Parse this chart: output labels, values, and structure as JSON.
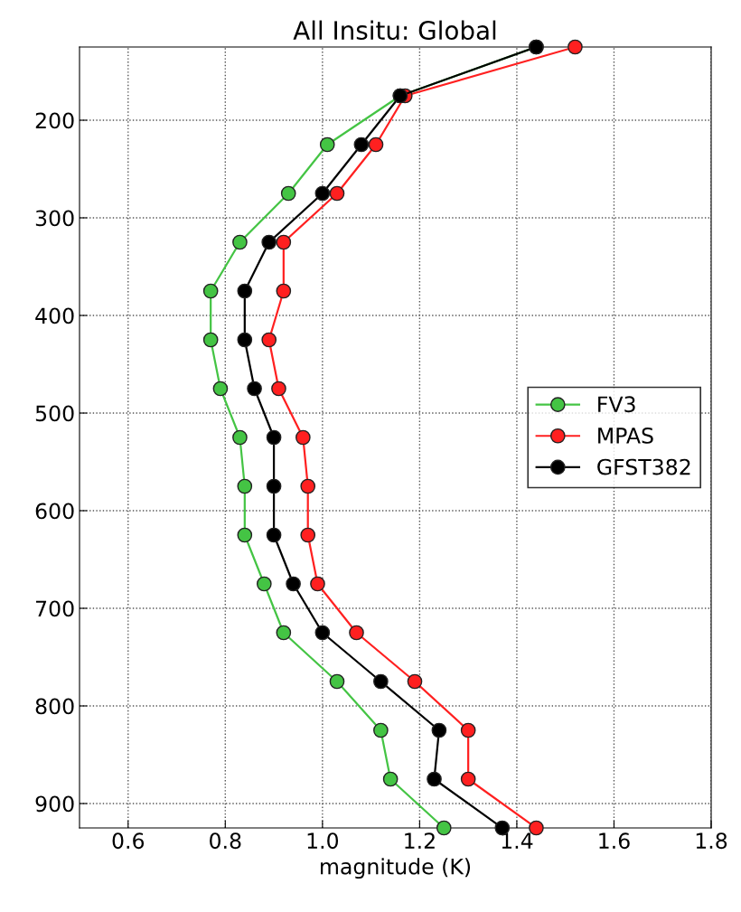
{
  "chart_data": {
    "type": "line",
    "title": "All Insitu: Global",
    "xlabel": "magnitude (K)",
    "orientation": "horizontal",
    "x": [
      125,
      175,
      225,
      275,
      325,
      375,
      425,
      475,
      525,
      575,
      625,
      675,
      725,
      775,
      825,
      875,
      925
    ],
    "series": [
      {
        "name": "FV3",
        "color": "#44c444",
        "values": [
          1.44,
          1.16,
          1.01,
          0.93,
          0.83,
          0.77,
          0.77,
          0.79,
          0.83,
          0.84,
          0.84,
          0.88,
          0.92,
          1.03,
          1.12,
          1.14,
          1.25
        ]
      },
      {
        "name": "MPAS",
        "color": "#ff2020",
        "values": [
          1.52,
          1.17,
          1.11,
          1.03,
          0.92,
          0.92,
          0.89,
          0.91,
          0.96,
          0.97,
          0.97,
          0.99,
          1.07,
          1.19,
          1.3,
          1.3,
          1.44
        ]
      },
      {
        "name": "GFST382",
        "color": "#000000",
        "values": [
          1.44,
          1.16,
          1.08,
          1.0,
          0.89,
          0.84,
          0.84,
          0.86,
          0.9,
          0.9,
          0.9,
          0.94,
          1.0,
          1.12,
          1.24,
          1.23,
          1.37
        ]
      }
    ],
    "xlim": [
      0.5,
      1.8
    ],
    "xticks": [
      0.6,
      0.8,
      {
        "value": 1.0,
        "label": "1.0"
      },
      1.2,
      1.4,
      1.6,
      1.8
    ],
    "ylim": [
      925,
      125
    ],
    "yticks": [
      200,
      300,
      400,
      500,
      600,
      700,
      800,
      900
    ],
    "grid": true,
    "legend": "right",
    "marker": "circle",
    "line_style": "solid"
  }
}
